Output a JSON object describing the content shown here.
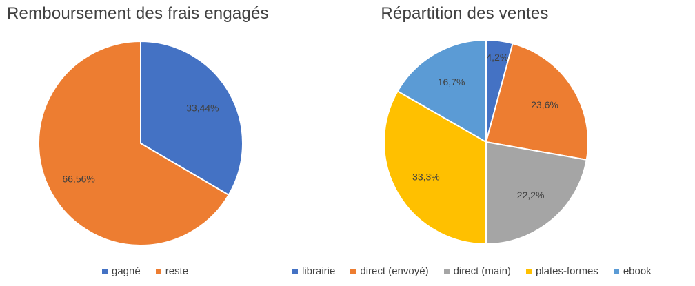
{
  "chart_data": [
    {
      "type": "pie",
      "title": "Remboursement des frais engagés",
      "categories": [
        "gagné",
        "reste"
      ],
      "values": [
        33.44,
        66.56
      ],
      "data_labels": [
        "33,44%",
        "66,56%"
      ],
      "colors": [
        "#4472C4",
        "#ED7D31"
      ],
      "legend_position": "bottom"
    },
    {
      "type": "pie",
      "title": "Répartition des ventes",
      "categories": [
        "librairie",
        "direct (envoyé)",
        "direct (main)",
        "plates-formes",
        "ebook"
      ],
      "values": [
        4.2,
        23.6,
        22.2,
        33.3,
        16.7
      ],
      "data_labels": [
        "4,2%",
        "23,6%",
        "22,2%",
        "33,3%",
        "16,7%"
      ],
      "colors": [
        "#4472C4",
        "#ED7D31",
        "#A5A5A5",
        "#FFC000",
        "#5B9BD5"
      ],
      "legend_position": "bottom"
    }
  ]
}
